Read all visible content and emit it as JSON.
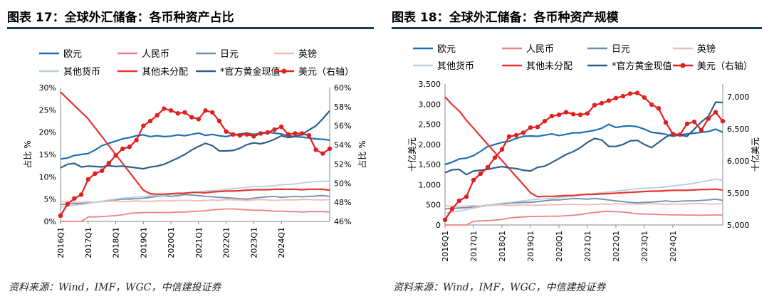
{
  "left": {
    "title": "图表 17：全球外汇储备：各币种资产占比",
    "source": "资料来源：Wind，IMF，WGC，中信建投证券"
  },
  "right": {
    "title": "图表 18：全球外汇储备：各币种资产规模",
    "source": "资料来源：Wind，IMF，WGC，中信建投证券"
  },
  "colors": {
    "eur": "#1f6fb4",
    "cny": "#f08080",
    "jpy": "#6b8fb0",
    "gbp": "#f7b8b0",
    "other": "#b8cde0",
    "unalloc": "#e8332e",
    "gold": "#2e5f8a",
    "usd": "#e0201f",
    "rule": "#1f3a5f"
  },
  "chart_data": [
    {
      "type": "line",
      "xlabels": [
        "2016Q1",
        "2017Q1",
        "2018Q1",
        "2019Q1",
        "2020Q1",
        "2021Q1",
        "2022Q1",
        "2023Q1",
        "2024Q1"
      ],
      "ylabel": "占比 %",
      "y2label": "占比 %",
      "ylim": [
        0,
        30
      ],
      "yticks": [
        "0%",
        "5%",
        "10%",
        "15%",
        "20%",
        "25%",
        "30%"
      ],
      "y2lim": [
        46,
        60
      ],
      "y2ticks": [
        "46%",
        "48%",
        "50%",
        "52%",
        "54%",
        "56%",
        "58%",
        "60%"
      ],
      "legend": [
        {
          "key": "eur",
          "label": "欧元",
          "marker": false
        },
        {
          "key": "cny",
          "label": "人民币",
          "marker": false
        },
        {
          "key": "jpy",
          "label": "日元",
          "marker": false
        },
        {
          "key": "gbp",
          "label": "英镑",
          "marker": false
        },
        {
          "key": "other",
          "label": "其他货币",
          "marker": false
        },
        {
          "key": "unalloc",
          "label": "其他未分配",
          "marker": false
        },
        {
          "key": "gold",
          "label": "*官方黄金现值",
          "marker": false
        },
        {
          "key": "usd",
          "label": "美元（右轴）",
          "marker": true
        }
      ],
      "series": [
        {
          "key": "eur",
          "name": "欧元",
          "axis": "left",
          "values": [
            14.0,
            14.2,
            14.8,
            15.0,
            15.2,
            16.0,
            17.0,
            17.5,
            18.0,
            18.5,
            18.8,
            19.2,
            19.4,
            19.0,
            19.2,
            19.0,
            19.1,
            19.4,
            19.2,
            19.5,
            19.8,
            19.3,
            19.5,
            19.2,
            19.0,
            19.4,
            19.6,
            19.8,
            19.5,
            19.8,
            20.0,
            19.8,
            19.6,
            19.2,
            19.0,
            18.9,
            18.7,
            18.5,
            18.4,
            18.2
          ]
        },
        {
          "key": "cny",
          "name": "人民币",
          "axis": "left",
          "values": [
            0.0,
            0.0,
            0.0,
            0.0,
            1.0,
            1.0,
            1.1,
            1.2,
            1.3,
            1.5,
            1.8,
            1.9,
            2.0,
            2.0,
            2.0,
            2.0,
            2.0,
            2.1,
            2.1,
            2.2,
            2.3,
            2.4,
            2.6,
            2.7,
            2.8,
            2.8,
            2.7,
            2.6,
            2.5,
            2.5,
            2.4,
            2.3,
            2.3,
            2.2,
            2.2,
            2.1,
            2.2,
            2.2,
            2.2,
            2.1
          ]
        },
        {
          "key": "jpy",
          "name": "日元",
          "axis": "left",
          "values": [
            3.8,
            3.9,
            4.0,
            4.0,
            4.1,
            4.3,
            4.5,
            4.6,
            4.8,
            5.0,
            5.0,
            5.1,
            5.2,
            5.4,
            5.6,
            5.8,
            5.6,
            5.8,
            6.0,
            5.9,
            5.8,
            5.6,
            5.5,
            5.4,
            5.3,
            5.2,
            5.1,
            5.0,
            5.2,
            5.4,
            5.5,
            5.6,
            5.4,
            5.5,
            5.6,
            5.5,
            5.6,
            5.7,
            5.8,
            5.6
          ]
        },
        {
          "key": "gbp",
          "name": "英镑",
          "axis": "left",
          "values": [
            4.5,
            4.4,
            4.3,
            4.3,
            4.4,
            4.3,
            4.4,
            4.5,
            4.6,
            4.4,
            4.5,
            4.6,
            4.5,
            4.5,
            4.6,
            4.6,
            4.6,
            4.7,
            4.7,
            4.7,
            4.6,
            4.7,
            4.8,
            4.7,
            4.9,
            4.8,
            4.8,
            4.7,
            4.8,
            4.9,
            4.8,
            4.7,
            4.8,
            4.8,
            4.8,
            4.9,
            4.9,
            4.8,
            4.8,
            4.9
          ]
        },
        {
          "key": "other",
          "name": "其他货币",
          "axis": "left",
          "values": [
            3.2,
            3.4,
            3.6,
            3.8,
            4.0,
            4.3,
            4.5,
            4.8,
            5.0,
            5.2,
            5.3,
            5.5,
            5.6,
            5.7,
            5.8,
            5.9,
            6.0,
            6.2,
            6.3,
            6.5,
            6.6,
            6.8,
            6.9,
            7.0,
            7.2,
            7.3,
            7.5,
            7.6,
            7.8,
            7.8,
            7.9,
            8.0,
            8.2,
            8.3,
            8.4,
            8.6,
            8.8,
            8.9,
            9.0,
            9.0
          ]
        },
        {
          "key": "unalloc",
          "name": "其他未分配",
          "axis": "left",
          "values": [
            29.0,
            27.5,
            26.0,
            24.5,
            23.0,
            21.0,
            19.0,
            17.0,
            15.0,
            13.0,
            11.0,
            9.0,
            7.0,
            6.2,
            6.1,
            6.1,
            6.2,
            6.3,
            6.3,
            6.5,
            6.5,
            6.4,
            6.6,
            6.7,
            6.8,
            6.8,
            6.9,
            7.0,
            7.1,
            7.1,
            7.1,
            7.2,
            7.2,
            7.2,
            7.2,
            7.1,
            7.2,
            7.2,
            7.2,
            7.0
          ]
        },
        {
          "key": "gold",
          "name": "*官方黄金现值",
          "axis": "left",
          "values": [
            12.0,
            12.8,
            13.0,
            12.2,
            12.4,
            12.3,
            12.2,
            12.5,
            12.3,
            12.4,
            12.2,
            12.0,
            11.8,
            12.2,
            12.4,
            12.8,
            13.5,
            14.2,
            15.0,
            16.0,
            16.8,
            17.5,
            17.0,
            15.8,
            15.8,
            15.9,
            16.4,
            17.2,
            17.6,
            17.4,
            17.8,
            18.4,
            19.2,
            18.8,
            19.0,
            19.5,
            20.5,
            21.4,
            23.0,
            24.8
          ]
        },
        {
          "key": "usd",
          "name": "美元（右轴）",
          "axis": "right",
          "marker": true,
          "values": [
            46.6,
            47.8,
            48.4,
            48.8,
            50.4,
            51.0,
            51.3,
            52.1,
            52.9,
            53.6,
            53.8,
            54.5,
            56.0,
            56.5,
            57.1,
            57.8,
            57.6,
            57.3,
            57.4,
            56.9,
            56.7,
            57.6,
            57.4,
            56.5,
            55.4,
            55.1,
            55.0,
            55.1,
            54.9,
            55.2,
            55.3,
            55.6,
            55.9,
            55.1,
            55.2,
            55.2,
            55.0,
            53.5,
            53.1,
            53.6
          ]
        }
      ]
    },
    {
      "type": "line",
      "xlabels": [
        "2016Q1",
        "2017Q1",
        "2018Q1",
        "2019Q1",
        "2020Q1",
        "2021Q1",
        "2022Q1",
        "2023Q1",
        "2024Q1"
      ],
      "ylabel": "十亿美元",
      "y2label": "十亿美元",
      "ylim": [
        0,
        3500
      ],
      "yticks": [
        "0",
        "500",
        "1,000",
        "1,500",
        "2,000",
        "2,500",
        "3,000",
        "3,500"
      ],
      "y2lim": [
        5000,
        7200
      ],
      "y2ticks": [
        "5,000",
        "5,500",
        "6,000",
        "6,500",
        "7,000"
      ],
      "legend": [
        {
          "key": "eur",
          "label": "欧元",
          "marker": false
        },
        {
          "key": "cny",
          "label": "人民币",
          "marker": false
        },
        {
          "key": "jpy",
          "label": "日元",
          "marker": false
        },
        {
          "key": "gbp",
          "label": "英镑",
          "marker": false
        },
        {
          "key": "other",
          "label": "其他货币",
          "marker": false
        },
        {
          "key": "unalloc",
          "label": "其他未分配",
          "marker": false
        },
        {
          "key": "gold",
          "label": "*官方黄金现值",
          "marker": false
        },
        {
          "key": "usd",
          "label": "美元（右轴）",
          "marker": true
        }
      ],
      "series": [
        {
          "key": "eur",
          "name": "欧元",
          "axis": "left",
          "values": [
            1500,
            1560,
            1640,
            1660,
            1720,
            1830,
            1950,
            2000,
            2050,
            2080,
            2150,
            2200,
            2210,
            2200,
            2230,
            2260,
            2220,
            2250,
            2290,
            2290,
            2320,
            2350,
            2400,
            2500,
            2420,
            2450,
            2460,
            2440,
            2380,
            2300,
            2280,
            2250,
            2200,
            2240,
            2260,
            2280,
            2300,
            2320,
            2380,
            2300
          ]
        },
        {
          "key": "cny",
          "name": "人民币",
          "axis": "left",
          "values": [
            0,
            0,
            0,
            0,
            90,
            100,
            110,
            120,
            140,
            170,
            190,
            200,
            210,
            210,
            215,
            220,
            220,
            230,
            240,
            260,
            290,
            310,
            330,
            340,
            330,
            320,
            300,
            280,
            270,
            265,
            260,
            255,
            250,
            250,
            245,
            245,
            240,
            245,
            250,
            245
          ]
        },
        {
          "key": "jpy",
          "name": "日元",
          "axis": "left",
          "values": [
            400,
            410,
            420,
            430,
            450,
            470,
            490,
            500,
            520,
            540,
            550,
            560,
            560,
            580,
            600,
            620,
            620,
            640,
            660,
            650,
            640,
            660,
            640,
            620,
            600,
            580,
            560,
            550,
            560,
            570,
            580,
            600,
            580,
            590,
            600,
            600,
            610,
            620,
            640,
            610
          ]
        },
        {
          "key": "gbp",
          "name": "英镑",
          "axis": "left",
          "values": [
            480,
            470,
            460,
            470,
            480,
            470,
            480,
            490,
            500,
            480,
            490,
            500,
            490,
            490,
            500,
            500,
            500,
            510,
            510,
            510,
            500,
            510,
            520,
            510,
            530,
            520,
            520,
            510,
            520,
            530,
            520,
            510,
            520,
            520,
            520,
            530,
            530,
            520,
            520,
            530
          ]
        },
        {
          "key": "other",
          "name": "其他货币",
          "axis": "left",
          "values": [
            290,
            320,
            350,
            380,
            420,
            450,
            480,
            520,
            540,
            560,
            580,
            600,
            620,
            640,
            650,
            660,
            680,
            700,
            720,
            740,
            760,
            780,
            800,
            820,
            840,
            860,
            880,
            900,
            910,
            920,
            930,
            950,
            970,
            990,
            1010,
            1040,
            1070,
            1100,
            1140,
            1100
          ]
        },
        {
          "key": "unalloc",
          "name": "其他未分配",
          "axis": "left",
          "values": [
            3180,
            2990,
            2830,
            2600,
            2400,
            2200,
            2000,
            1800,
            1600,
            1400,
            1200,
            1000,
            800,
            700,
            710,
            710,
            720,
            730,
            730,
            750,
            760,
            760,
            770,
            780,
            790,
            800,
            810,
            820,
            830,
            840,
            840,
            850,
            860,
            860,
            860,
            870,
            880,
            880,
            890,
            870
          ]
        },
        {
          "key": "gold",
          "name": "*官方黄金现值",
          "axis": "left",
          "values": [
            1300,
            1370,
            1380,
            1250,
            1340,
            1360,
            1380,
            1420,
            1450,
            1420,
            1400,
            1360,
            1340,
            1430,
            1460,
            1550,
            1650,
            1750,
            1820,
            1920,
            2050,
            2150,
            2110,
            1950,
            1950,
            2000,
            2090,
            2100,
            2000,
            1920,
            2050,
            2180,
            2270,
            2230,
            2200,
            2380,
            2560,
            2700,
            3050,
            3040
          ]
        },
        {
          "key": "usd",
          "name": "美元（右轴）",
          "axis": "right",
          "marker": true,
          "values": [
            5080,
            5250,
            5380,
            5440,
            5700,
            5800,
            5900,
            6050,
            6180,
            6380,
            6400,
            6440,
            6520,
            6530,
            6620,
            6700,
            6720,
            6760,
            6730,
            6720,
            6740,
            6870,
            6900,
            6940,
            6980,
            7010,
            7050,
            7060,
            6990,
            6880,
            6820,
            6600,
            6420,
            6410,
            6580,
            6610,
            6480,
            6660,
            6760,
            6620
          ]
        }
      ]
    }
  ]
}
